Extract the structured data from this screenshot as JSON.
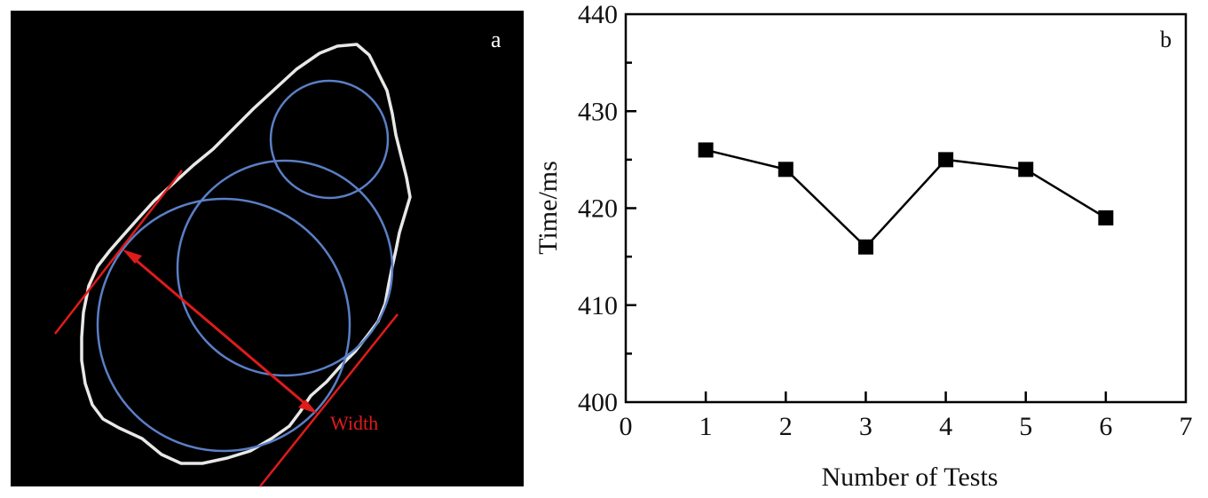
{
  "panel_a": {
    "letter": "a",
    "annotation": "Width",
    "colors": {
      "background": "#000000",
      "contour": "#e8e8e8",
      "circles": "#5b7fc6",
      "annotation": "#e01b1b"
    }
  },
  "panel_b": {
    "letter": "b"
  },
  "chart_data": {
    "type": "line",
    "title": "",
    "xlabel": "Number of Tests",
    "ylabel": "Time/ms",
    "xlim": [
      0,
      7
    ],
    "ylim": [
      400,
      440
    ],
    "x_ticks": [
      "0",
      "1",
      "2",
      "3",
      "4",
      "5",
      "6",
      "7"
    ],
    "y_ticks": [
      "400",
      "410",
      "420",
      "430",
      "440"
    ],
    "grid": false,
    "legend": "none",
    "marker": "square",
    "color": "#000000",
    "series": [
      {
        "x": [
          1,
          2,
          3,
          4,
          5,
          6
        ],
        "values": [
          426,
          424,
          416,
          425,
          424,
          419
        ]
      }
    ]
  }
}
